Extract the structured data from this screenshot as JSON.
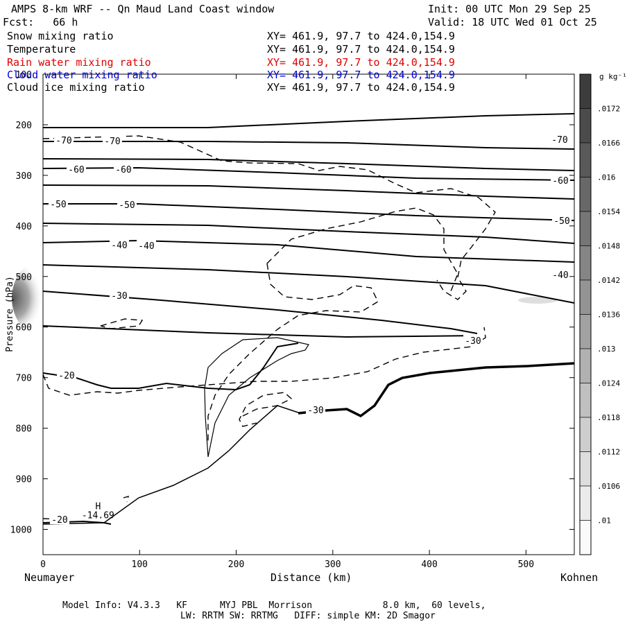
{
  "header": {
    "title": "AMPS 8-km WRF -- Qn Maud Land Coast window",
    "init": "Init: 00 UTC Mon 29 Sep 25",
    "fcst": "Fcst:   66 h",
    "valid": "Valid: 18 UTC Wed 01 Oct 25"
  },
  "fields": [
    {
      "name": "Snow mixing ratio",
      "xy": "XY= 461.9, 97.7 to 424.0,154.9",
      "color": "#000000"
    },
    {
      "name": "Temperature",
      "xy": "XY= 461.9, 97.7 to 424.0,154.9",
      "color": "#000000"
    },
    {
      "name": "Rain water mixing ratio",
      "xy": "XY= 461.9, 97.7 to 424.0,154.9",
      "color": "#e00000"
    },
    {
      "name": "Cloud water mixing ratio",
      "xy": "XY= 461.9, 97.7 to 424.0,154.9",
      "color": "#0000cc"
    },
    {
      "name": "Cloud ice mixing ratio",
      "xy": "XY= 461.9, 97.7 to 424.0,154.9",
      "color": "#000000"
    }
  ],
  "footer": {
    "line1": "Model Info: V4.3.3   KF      MYJ PBL  Morrison             8.0 km,  60 levels,",
    "line2": "LW: RRTM SW: RRTMG   DIFF: simple KM: 2D Smagor"
  },
  "chart_data": {
    "type": "contour",
    "xlabel": "Distance (km)",
    "ylabel": "Pressure (hPa)",
    "xlim": [
      0,
      550
    ],
    "ylim": [
      1050,
      100
    ],
    "x_ticks": [
      0,
      100,
      200,
      300,
      400,
      500
    ],
    "y_ticks": [
      100,
      200,
      300,
      400,
      500,
      600,
      700,
      800,
      900,
      1000
    ],
    "x_end_labels": {
      "left": "Neumayer",
      "right": "Kohnen"
    },
    "colorbar": {
      "unit": "g kg⁻¹",
      "ticks": [
        ".0172",
        ".0166",
        ".016",
        ".0154",
        ".0148",
        ".0142",
        ".0136",
        ".013",
        ".0124",
        ".0118",
        ".0112",
        ".0106",
        ".01"
      ]
    },
    "temperature_contours": [
      {
        "level": -70,
        "labels": [
          "-70",
          "-70",
          "-70"
        ]
      },
      {
        "level": -60,
        "labels": [
          "-60",
          "-60",
          "-60"
        ]
      },
      {
        "level": -50,
        "labels": [
          "-50",
          "-50",
          "-50"
        ]
      },
      {
        "level": -40,
        "labels": [
          "-40",
          "-40",
          "-40"
        ]
      },
      {
        "level": -30,
        "labels": [
          "-30",
          "-30",
          "-30"
        ]
      },
      {
        "level": -20,
        "labels": [
          "-20",
          "-20"
        ]
      }
    ],
    "annotations": [
      {
        "text": "H",
        "x_km": 57,
        "p_hpa": 960
      },
      {
        "text": "-14.69",
        "x_km": 57,
        "p_hpa": 978
      }
    ]
  }
}
